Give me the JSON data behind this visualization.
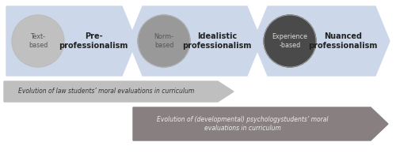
{
  "bg_color": "#ffffff",
  "arrow_color": "#ccd8ea",
  "circle_colors": [
    "#c0c0c0",
    "#999999",
    "#4a4a4a"
  ],
  "circle_text_colors": [
    "#555555",
    "#555555",
    "#dddddd"
  ],
  "circle_labels": [
    "Text-\nbased",
    "Norm-\nbased",
    "Experience\n-based"
  ],
  "arrow_labels": [
    "Pre-\nprofessionalism",
    "Idealistic\nprofessionalism",
    "Nuanced\nprofessionalism"
  ],
  "law_arrow_color": "#c0bfbf",
  "law_arrow_text": "Evolution of law students’ moral evaluations in curriculum",
  "psych_arrow_color": "#888080",
  "psych_arrow_text": "Evolution of (developmental) psychologystudents’ moral\nevaluations in curriculum",
  "figsize": [
    5.0,
    2.04
  ],
  "dpi": 100
}
